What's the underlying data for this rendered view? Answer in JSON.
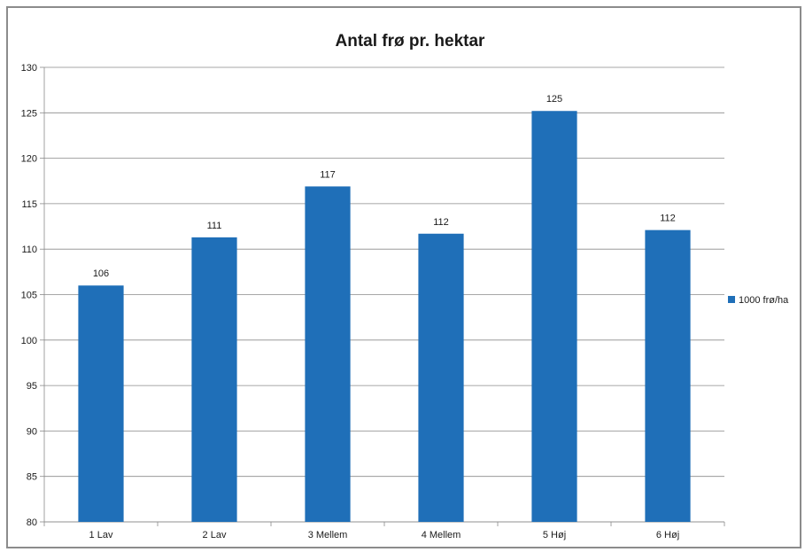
{
  "chart_data": {
    "type": "bar",
    "title": "Antal frø pr. hektar",
    "xlabel": "",
    "ylabel": "",
    "categories": [
      "1 Lav",
      "2 Lav",
      "3 Mellem",
      "4 Mellem",
      "5 Høj",
      "6 Høj"
    ],
    "series": [
      {
        "name": "1000 frø/ha",
        "values": [
          106,
          111.3,
          116.9,
          111.7,
          125.2,
          112.1
        ],
        "labels": [
          "106",
          "111",
          "117",
          "112",
          "125",
          "112"
        ],
        "color": "#1f6fb8"
      }
    ],
    "ylim": [
      80,
      130
    ],
    "yticks": [
      "80",
      "85",
      "90",
      "95",
      "100",
      "105",
      "110",
      "115",
      "120",
      "125",
      "130"
    ],
    "grid": true,
    "legend_position": "right"
  }
}
